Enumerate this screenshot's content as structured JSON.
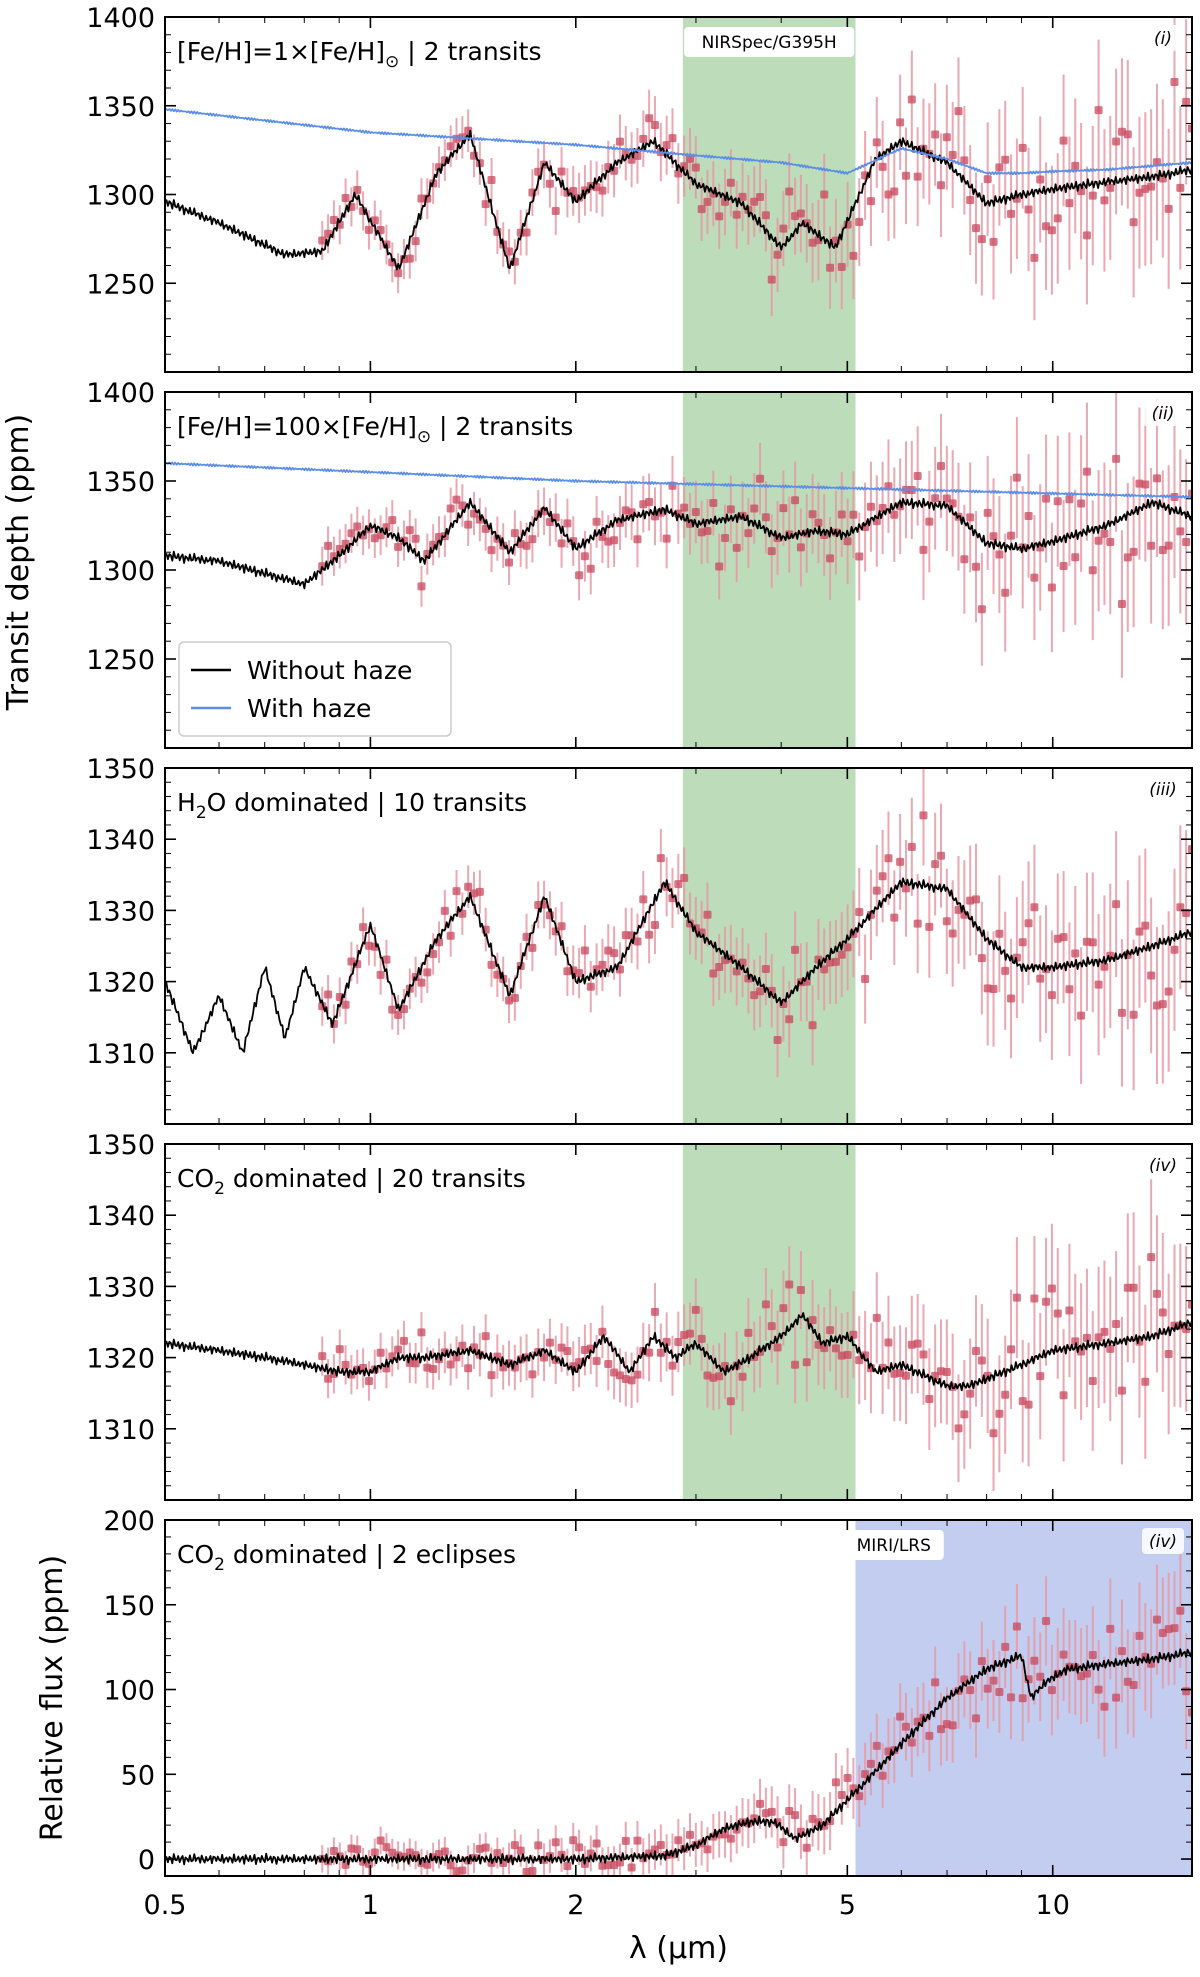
{
  "chart_data": {
    "type": "line",
    "ylabel_shared": "Transit depth (ppm)",
    "xlabel": "λ (μm)",
    "xscale": "log",
    "xlim": [
      0.5,
      16.0
    ],
    "x_ticks": [
      {
        "v": 0.5,
        "label": "0.5"
      },
      {
        "v": 1,
        "label": "1"
      },
      {
        "v": 2,
        "label": "2"
      },
      {
        "v": 5,
        "label": "5"
      },
      {
        "v": 10,
        "label": "10"
      }
    ],
    "bands": {
      "nirspec": {
        "label": "NIRSpec/G395H",
        "x": [
          2.87,
          5.14
        ],
        "color": "#bddcb9"
      },
      "miri": {
        "label": "MIRI/LRS",
        "x": [
          5.14,
          16.0
        ],
        "color": "#c3cdf0"
      }
    },
    "legend": [
      {
        "label": "Without haze",
        "color": "#000000"
      },
      {
        "label": "With haze",
        "color": "#5b8ee6"
      }
    ],
    "colors": {
      "model": "#000000",
      "haze": "#5b8ee6",
      "data": "#c8475c",
      "error": "#e69aa5"
    },
    "panels": [
      {
        "tag": "(i)",
        "title": "[Fe/H]=1×[Fe/H]",
        "title_sub": "⊙",
        "title_rest": " | 2 transits",
        "ylim": [
          1200,
          1400
        ],
        "yticks": [
          1250,
          1300,
          1350,
          1400
        ],
        "band": "nirspec",
        "series": [
          {
            "name": "Without haze",
            "x": [
              0.5,
              0.6,
              0.75,
              0.85,
              0.95,
              1.1,
              1.25,
              1.4,
              1.6,
              1.8,
              2.0,
              2.3,
              2.6,
              3.0,
              3.5,
              4.0,
              4.3,
              4.8,
              5.5,
              6.0,
              7.0,
              8.0,
              9.0,
              10.0,
              12.0,
              14.0,
              16.0
            ],
            "y": [
              1296,
              1284,
              1266,
              1268,
              1300,
              1258,
              1312,
              1334,
              1258,
              1318,
              1296,
              1318,
              1330,
              1306,
              1295,
              1270,
              1284,
              1270,
              1320,
              1330,
              1318,
              1295,
              1300,
              1303,
              1307,
              1310,
              1314
            ]
          },
          {
            "name": "With haze",
            "x": [
              0.5,
              1.0,
              2.0,
              3.0,
              4.0,
              5.0,
              6.0,
              7.0,
              8.0,
              9.0,
              10.0,
              12.0,
              16.0
            ],
            "y": [
              1348,
              1335,
              1328,
              1322,
              1318,
              1312,
              1326,
              1320,
              1312,
              1312,
              1313,
              1314,
              1318
            ]
          }
        ]
      },
      {
        "tag": "(ii)",
        "title": "[Fe/H]=100×[Fe/H]",
        "title_sub": "⊙",
        "title_rest": " | 2 transits",
        "ylim": [
          1200,
          1400
        ],
        "yticks": [
          1250,
          1300,
          1350,
          1400
        ],
        "band": "nirspec",
        "show_legend": true,
        "series": [
          {
            "name": "Without haze",
            "x": [
              0.5,
              0.6,
              0.7,
              0.8,
              0.9,
              1.0,
              1.1,
              1.2,
              1.4,
              1.6,
              1.8,
              2.0,
              2.3,
              2.7,
              3.0,
              3.5,
              4.0,
              4.5,
              5.0,
              6.0,
              7.0,
              8.0,
              9.0,
              10.0,
              12.0,
              14.0,
              16.0
            ],
            "y": [
              1308,
              1305,
              1298,
              1292,
              1308,
              1325,
              1318,
              1305,
              1338,
              1310,
              1335,
              1312,
              1328,
              1334,
              1326,
              1330,
              1318,
              1322,
              1320,
              1338,
              1336,
              1315,
              1312,
              1316,
              1325,
              1338,
              1330
            ]
          },
          {
            "name": "With haze",
            "x": [
              0.5,
              1.0,
              2.0,
              5.0,
              10.0,
              16.0
            ],
            "y": [
              1360,
              1355,
              1350,
              1346,
              1343,
              1341
            ]
          }
        ]
      },
      {
        "tag": "(iii)",
        "title": "H",
        "title_sub": "2",
        "title_rest": "O dominated | 10 transits",
        "ylim": [
          1300,
          1350
        ],
        "yticks": [
          1310,
          1320,
          1330,
          1340,
          1350
        ],
        "band": "nirspec",
        "series": [
          {
            "name": "Without haze",
            "x": [
              0.5,
              0.55,
              0.6,
              0.65,
              0.7,
              0.75,
              0.8,
              0.88,
              1.0,
              1.1,
              1.25,
              1.4,
              1.6,
              1.8,
              2.0,
              2.3,
              2.7,
              3.0,
              3.5,
              4.0,
              4.5,
              5.0,
              6.0,
              7.0,
              8.0,
              9.0,
              10.0,
              12.0,
              14.0,
              16.0
            ],
            "y": [
              1320,
              1310,
              1318,
              1310,
              1322,
              1312,
              1322,
              1314,
              1328,
              1316,
              1326,
              1332,
              1318,
              1332,
              1320,
              1322,
              1334,
              1327,
              1322,
              1317,
              1322,
              1326,
              1334,
              1333,
              1326,
              1322,
              1322,
              1323,
              1325,
              1327
            ]
          }
        ]
      },
      {
        "tag": "(iv)",
        "title": "CO",
        "title_sub": "2",
        "title_rest": " dominated | 20 transits",
        "ylim": [
          1300,
          1350
        ],
        "yticks": [
          1310,
          1320,
          1330,
          1340,
          1350
        ],
        "band": "nirspec",
        "series": [
          {
            "name": "Without haze",
            "x": [
              0.5,
              0.6,
              0.7,
              0.8,
              0.9,
              1.0,
              1.1,
              1.2,
              1.4,
              1.6,
              1.8,
              2.0,
              2.2,
              2.4,
              2.6,
              2.8,
              3.0,
              3.3,
              3.6,
              4.0,
              4.3,
              4.6,
              5.0,
              5.5,
              6.0,
              7.0,
              7.5,
              8.0,
              9.0,
              10.0,
              12.0,
              14.0,
              16.0
            ],
            "y": [
              1322,
              1321,
              1320,
              1319,
              1318,
              1318,
              1320,
              1320,
              1321,
              1319,
              1321,
              1318,
              1323,
              1318,
              1323,
              1320,
              1322,
              1318,
              1320,
              1323,
              1326,
              1322,
              1323,
              1318,
              1319,
              1316,
              1316,
              1317,
              1319,
              1321,
              1322,
              1323,
              1325
            ]
          }
        ]
      },
      {
        "tag": "(iv)",
        "title": "CO",
        "title_sub": "2",
        "title_rest": " dominated | 2 eclipses",
        "ylabel": "Relative flux (ppm)",
        "ylim": [
          -10,
          200
        ],
        "yticks": [
          0,
          50,
          100,
          150,
          200
        ],
        "band": "miri",
        "show_xticklabels": true,
        "series": [
          {
            "name": "Without haze",
            "x": [
              0.5,
              1.0,
              2.0,
              2.7,
              3.0,
              3.3,
              3.6,
              3.9,
              4.2,
              4.6,
              5.0,
              5.3,
              6.0,
              7.0,
              8.0,
              9.0,
              9.3,
              9.8,
              10.5,
              12.0,
              14.0,
              16.0
            ],
            "y": [
              0,
              0,
              0,
              2,
              8,
              18,
              22,
              22,
              12,
              20,
              35,
              45,
              68,
              95,
              112,
              120,
              95,
              105,
              112,
              115,
              118,
              122
            ]
          }
        ]
      }
    ]
  }
}
